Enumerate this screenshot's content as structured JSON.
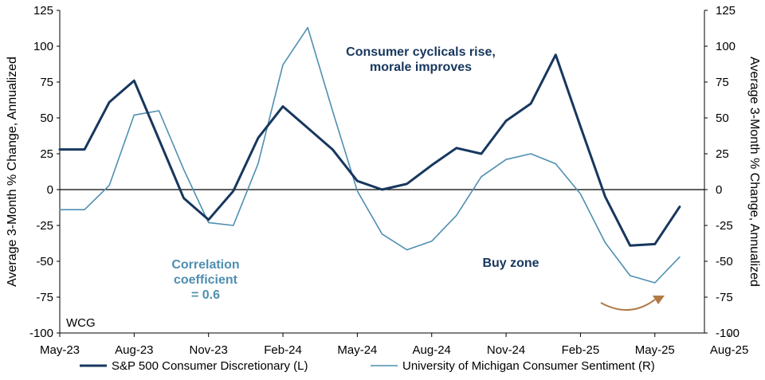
{
  "chart_data": {
    "type": "line",
    "title": "",
    "ylabel_left": "Average 3-Month % Change, Annualized",
    "ylabel_right": "Average 3-Month % Change, Annualized",
    "ylim_left": [
      -100,
      125
    ],
    "ylim_right": [
      -100,
      125
    ],
    "y_ticks": [
      -100,
      -75,
      -50,
      -25,
      0,
      25,
      50,
      75,
      100,
      125
    ],
    "x_ticks": [
      "May-23",
      "Aug-23",
      "Nov-23",
      "Feb-24",
      "May-24",
      "Aug-24",
      "Nov-24",
      "Feb-25",
      "May-25",
      "Aug-25"
    ],
    "x": [
      "May-23",
      "Jun-23",
      "Jul-23",
      "Aug-23",
      "Sep-23",
      "Oct-23",
      "Nov-23",
      "Dec-23",
      "Jan-24",
      "Feb-24",
      "Mar-24",
      "Apr-24",
      "May-24",
      "Jun-24",
      "Jul-24",
      "Aug-24",
      "Sep-24",
      "Oct-24",
      "Nov-24",
      "Dec-24",
      "Jan-25",
      "Feb-25",
      "Mar-25",
      "Apr-25",
      "May-25",
      "Jun-25"
    ],
    "grid": false,
    "legend_position": "bottom",
    "series": [
      {
        "name": "S&P 500 Consumer Discretionary (L)",
        "axis": "left",
        "color": "#17375e",
        "values": [
          28,
          28,
          61,
          76,
          35,
          -6,
          -21,
          -1,
          36,
          58,
          43,
          28,
          6,
          0,
          4,
          17,
          29,
          25,
          48,
          60,
          94,
          44,
          -5,
          -39,
          -38,
          -12
        ]
      },
      {
        "name": "University of Michigan Consumer Sentiment (R)",
        "axis": "right",
        "color": "#4f8fb0",
        "values": [
          -14,
          -14,
          3,
          52,
          55,
          14,
          -23,
          -25,
          18,
          87,
          113,
          55,
          -1,
          -31,
          -42,
          -36,
          -18,
          9,
          21,
          25,
          18,
          -3,
          -37,
          -60,
          -65,
          -47
        ]
      }
    ],
    "annotations": [
      {
        "text_lines": [
          "Consumer cyclicals rise,",
          "morale improves"
        ],
        "color": "#17375e"
      },
      {
        "text_lines": [
          "Correlation",
          "coefficient",
          "= 0.6"
        ],
        "color": "#4f8fb0"
      },
      {
        "text_lines": [
          "Buy zone"
        ],
        "color": "#17375e"
      }
    ],
    "source_label": "WCG",
    "arrow_color": "#b07a45"
  }
}
